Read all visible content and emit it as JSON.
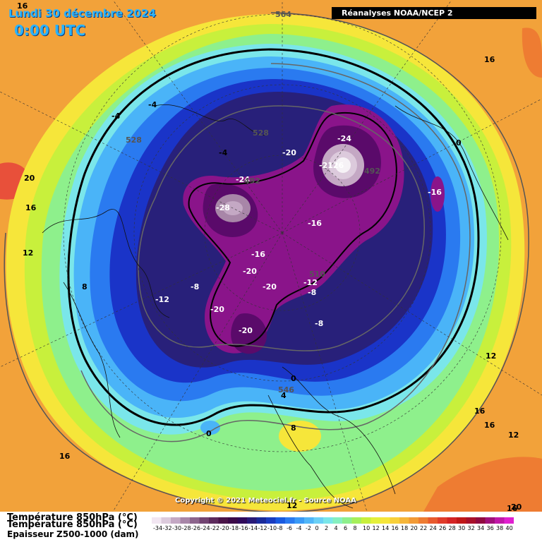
{
  "header": {
    "date": "Lundi 30 décembre 2024",
    "time": "0:00 UTC"
  },
  "source": "Réanalyses NOAA/NCEP 2",
  "copyright": "Copyright © 2021 Meteociel.fr - Source NOAA",
  "legend": {
    "title_line1": "Température 850hPa (°C)",
    "title_line2": "Température 850hPa (°C)",
    "title_line3": "Epaisseur Z500-1000 (dam)",
    "scale_values": [
      "-34",
      "-32",
      "-30",
      "-28",
      "-26",
      "-24",
      "-22",
      "-20",
      "-18",
      "-16",
      "-14",
      "-12",
      "-10",
      "-8",
      "-6",
      "-4",
      "-2",
      "0",
      "2",
      "4",
      "6",
      "8",
      "10",
      "12",
      "14",
      "16",
      "18",
      "20",
      "22",
      "24",
      "26",
      "28",
      "30",
      "32",
      "34",
      "36",
      "38",
      "40"
    ],
    "scale_colors": [
      "#f2e6f2",
      "#dccadc",
      "#c4a8c4",
      "#a886a8",
      "#8c648c",
      "#724472",
      "#5c2a5c",
      "#4a1448",
      "#3c0a48",
      "#300a5a",
      "#281a78",
      "#1a2a9a",
      "#1a3cc0",
      "#1a5ae0",
      "#2a7af0",
      "#3a9af6",
      "#50b6f8",
      "#6ad0f6",
      "#7ae6ea",
      "#86f0c0",
      "#8ef08c",
      "#a6f05a",
      "#c8f03c",
      "#e4f03a",
      "#f6e63a",
      "#f8d03a",
      "#f6b63a",
      "#f29a36",
      "#ee7c32",
      "#e85a2e",
      "#e03c2a",
      "#d42424",
      "#c01818",
      "#a8102a",
      "#900a40",
      "#a0107a",
      "#c018a8",
      "#e020d0"
    ]
  },
  "map": {
    "colors": {
      "deep_purple": "#5a0a6a",
      "purple": "#8a148a",
      "navy": "#28207a",
      "blue": "#1a34c8",
      "mid_blue": "#2a7af0",
      "light_blue": "#4ab4f8",
      "cyan": "#7ae6ea",
      "green": "#8ef08c",
      "lime": "#c8f03c",
      "yellow": "#f6e63a",
      "orange": "#f2a23a",
      "red": "#e8503a"
    },
    "temperature_labels": [
      {
        "text": "16",
        "color": "#000"
      },
      {
        "text": "16",
        "color": "#000"
      },
      {
        "text": "16",
        "color": "#000"
      },
      {
        "text": "16",
        "color": "#000"
      },
      {
        "text": "16",
        "color": "#000"
      },
      {
        "text": "16",
        "color": "#000"
      },
      {
        "text": "16",
        "color": "#000"
      },
      {
        "text": "20",
        "color": "#000"
      },
      {
        "text": "20",
        "color": "#000"
      },
      {
        "text": "12",
        "color": "#000"
      },
      {
        "text": "12",
        "color": "#000"
      },
      {
        "text": "12",
        "color": "#000"
      },
      {
        "text": "12",
        "color": "#000"
      },
      {
        "text": "8",
        "color": "#000"
      },
      {
        "text": "8",
        "color": "#000"
      },
      {
        "text": "4",
        "color": "#000"
      },
      {
        "text": "0",
        "color": "#000"
      },
      {
        "text": "0",
        "color": "#000"
      },
      {
        "text": "0",
        "color": "#000"
      },
      {
        "text": "-4",
        "color": "#000"
      },
      {
        "text": "-4",
        "color": "#000"
      },
      {
        "text": "-4",
        "color": "#000"
      },
      {
        "text": "-8",
        "color": "#fff"
      },
      {
        "text": "-8",
        "color": "#fff"
      },
      {
        "text": "-8",
        "color": "#fff"
      },
      {
        "text": "-12",
        "color": "#fff"
      },
      {
        "text": "-12",
        "color": "#fff"
      },
      {
        "text": "-16",
        "color": "#fff"
      },
      {
        "text": "-16",
        "color": "#fff"
      },
      {
        "text": "-16",
        "color": "#fff"
      },
      {
        "text": "-20",
        "color": "#fff"
      },
      {
        "text": "-20",
        "color": "#fff"
      },
      {
        "text": "-20",
        "color": "#fff"
      },
      {
        "text": "-20",
        "color": "#fff"
      },
      {
        "text": "-20",
        "color": "#fff"
      },
      {
        "text": "-24",
        "color": "#fff"
      },
      {
        "text": "-24",
        "color": "#fff"
      },
      {
        "text": "-28",
        "color": "#fff"
      },
      {
        "text": "-2126",
        "color": "#fff"
      }
    ],
    "thickness_labels": [
      "564",
      "528",
      "528",
      "492",
      "492",
      "510",
      "546"
    ]
  }
}
